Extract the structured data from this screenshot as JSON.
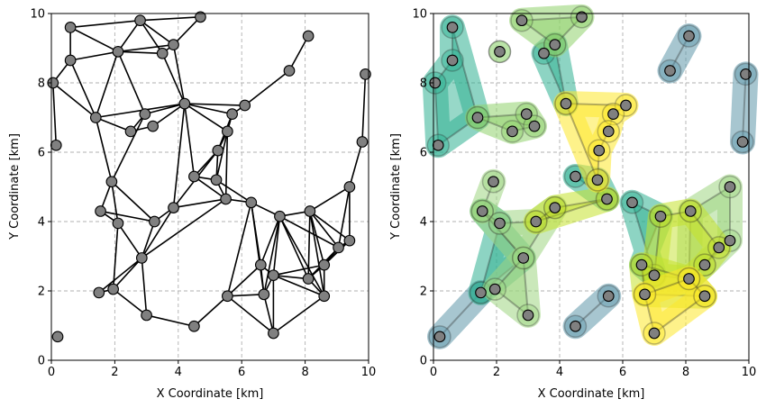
{
  "chart_data": [
    {
      "type": "network",
      "title": "",
      "xlabel": "X Coordinate [km]",
      "ylabel": "Y Coordinate [km]",
      "xlim": [
        0,
        10
      ],
      "ylim": [
        0,
        10
      ],
      "x_ticks": [
        "0",
        "2",
        "4",
        "6",
        "8",
        "10"
      ],
      "y_ticks": [
        "0",
        "2",
        "4",
        "6",
        "8",
        "10"
      ],
      "grid": true,
      "node_color": "#808080",
      "edge_color": "#000000",
      "nodes": [
        [
          0.6,
          9.6
        ],
        [
          2.8,
          9.8
        ],
        [
          4.7,
          9.9
        ],
        [
          2.1,
          8.9
        ],
        [
          0.6,
          8.65
        ],
        [
          3.5,
          8.85
        ],
        [
          3.85,
          9.1
        ],
        [
          0.05,
          8.0
        ],
        [
          8.1,
          9.35
        ],
        [
          7.5,
          8.35
        ],
        [
          9.9,
          8.25
        ],
        [
          1.4,
          7.0
        ],
        [
          2.95,
          7.1
        ],
        [
          3.2,
          6.75
        ],
        [
          2.5,
          6.6
        ],
        [
          4.2,
          7.4
        ],
        [
          5.7,
          7.1
        ],
        [
          6.1,
          7.35
        ],
        [
          5.55,
          6.6
        ],
        [
          0.15,
          6.2
        ],
        [
          5.25,
          6.05
        ],
        [
          9.8,
          6.3
        ],
        [
          1.9,
          5.15
        ],
        [
          4.5,
          5.3
        ],
        [
          5.2,
          5.2
        ],
        [
          9.4,
          5.0
        ],
        [
          5.5,
          4.65
        ],
        [
          6.3,
          4.55
        ],
        [
          1.55,
          4.3
        ],
        [
          3.85,
          4.4
        ],
        [
          2.1,
          3.95
        ],
        [
          3.25,
          4.0
        ],
        [
          7.2,
          4.15
        ],
        [
          8.15,
          4.3
        ],
        [
          9.4,
          3.45
        ],
        [
          9.05,
          3.25
        ],
        [
          2.85,
          2.95
        ],
        [
          6.6,
          2.75
        ],
        [
          8.6,
          2.75
        ],
        [
          7.0,
          2.45
        ],
        [
          8.1,
          2.35
        ],
        [
          1.5,
          1.95
        ],
        [
          1.95,
          2.05
        ],
        [
          5.55,
          1.85
        ],
        [
          6.7,
          1.9
        ],
        [
          8.6,
          1.85
        ],
        [
          3.0,
          1.3
        ],
        [
          4.5,
          0.98
        ],
        [
          7.0,
          0.78
        ],
        [
          0.2,
          0.68
        ]
      ],
      "edges": [
        [
          0,
          1
        ],
        [
          0,
          4
        ],
        [
          0,
          3
        ],
        [
          1,
          2
        ],
        [
          1,
          6
        ],
        [
          1,
          3
        ],
        [
          1,
          5
        ],
        [
          2,
          6
        ],
        [
          3,
          4
        ],
        [
          3,
          6
        ],
        [
          3,
          5
        ],
        [
          5,
          6
        ],
        [
          6,
          15
        ],
        [
          5,
          15
        ],
        [
          4,
          7
        ],
        [
          7,
          19
        ],
        [
          7,
          11
        ],
        [
          4,
          11
        ],
        [
          3,
          11
        ],
        [
          3,
          12
        ],
        [
          11,
          15
        ],
        [
          11,
          14
        ],
        [
          12,
          14
        ],
        [
          12,
          15
        ],
        [
          14,
          13
        ],
        [
          15,
          13
        ],
        [
          11,
          22
        ],
        [
          15,
          16
        ],
        [
          15,
          17
        ],
        [
          15,
          23
        ],
        [
          15,
          18
        ],
        [
          16,
          17
        ],
        [
          16,
          18
        ],
        [
          16,
          20
        ],
        [
          18,
          20
        ],
        [
          18,
          24
        ],
        [
          18,
          26
        ],
        [
          20,
          24
        ],
        [
          17,
          9
        ],
        [
          9,
          8
        ],
        [
          12,
          22
        ],
        [
          15,
          29
        ],
        [
          20,
          23
        ],
        [
          20,
          29
        ],
        [
          23,
          24
        ],
        [
          23,
          26
        ],
        [
          24,
          26
        ],
        [
          24,
          27
        ],
        [
          26,
          27
        ],
        [
          26,
          29
        ],
        [
          22,
          28
        ],
        [
          22,
          30
        ],
        [
          22,
          31
        ],
        [
          28,
          31
        ],
        [
          28,
          30
        ],
        [
          30,
          36
        ],
        [
          29,
          31
        ],
        [
          29,
          36
        ],
        [
          31,
          36
        ],
        [
          30,
          42
        ],
        [
          36,
          42
        ],
        [
          36,
          41
        ],
        [
          36,
          46
        ],
        [
          41,
          42
        ],
        [
          42,
          46
        ],
        [
          26,
          36
        ],
        [
          27,
          37
        ],
        [
          27,
          32
        ],
        [
          27,
          44
        ],
        [
          32,
          33
        ],
        [
          32,
          37
        ],
        [
          32,
          39
        ],
        [
          32,
          40
        ],
        [
          32,
          44
        ],
        [
          32,
          35
        ],
        [
          32,
          45
        ],
        [
          33,
          25
        ],
        [
          33,
          34
        ],
        [
          33,
          35
        ],
        [
          33,
          38
        ],
        [
          33,
          40
        ],
        [
          33,
          45
        ],
        [
          25,
          21
        ],
        [
          21,
          10
        ],
        [
          25,
          34
        ],
        [
          25,
          35
        ],
        [
          34,
          35
        ],
        [
          34,
          38
        ],
        [
          35,
          38
        ],
        [
          35,
          40
        ],
        [
          38,
          39
        ],
        [
          38,
          40
        ],
        [
          39,
          40
        ],
        [
          39,
          45
        ],
        [
          40,
          45
        ],
        [
          37,
          39
        ],
        [
          37,
          44
        ],
        [
          37,
          43
        ],
        [
          43,
          44
        ],
        [
          43,
          48
        ],
        [
          44,
          48
        ],
        [
          39,
          48
        ],
        [
          45,
          48
        ],
        [
          44,
          39
        ],
        [
          43,
          27
        ],
        [
          46,
          47
        ],
        [
          47,
          43
        ],
        [
          38,
          45
        ],
        [
          34,
          40
        ]
      ]
    },
    {
      "type": "clusters",
      "title": "",
      "xlabel": "X Coordinate [km]",
      "ylabel": "Y Coordinate [km]",
      "xlim": [
        0,
        10
      ],
      "ylim": [
        0,
        10
      ],
      "x_ticks": [
        "0",
        "2",
        "4",
        "6",
        "8",
        "10"
      ],
      "y_ticks": [
        "0",
        "2",
        "4",
        "6",
        "8",
        "10"
      ],
      "grid": true,
      "palette": {
        "steel-blue": "#5f97aa",
        "teal": "#2fb192",
        "green": "#8fd16b",
        "light-green": "#9ed682",
        "lime": "#c4e12c",
        "yellow": "#fde82a"
      },
      "groups": [
        {
          "color": "#5f97aa",
          "members": [
            9,
            8
          ]
        },
        {
          "color": "#5f97aa",
          "members": [
            10,
            21
          ]
        },
        {
          "color": "#5f97aa",
          "members": [
            47,
            43
          ]
        },
        {
          "color": "#5f97aa",
          "members": [
            49,
            41
          ]
        },
        {
          "color": "#2fb192",
          "members": [
            0,
            4,
            7,
            19,
            11
          ]
        },
        {
          "color": "#2fb192",
          "members": [
            5,
            6,
            15
          ]
        },
        {
          "color": "#2fb192",
          "members": [
            23,
            26,
            24
          ]
        },
        {
          "color": "#2fb192",
          "members": [
            41,
            30,
            28,
            36
          ]
        },
        {
          "color": "#2fb192",
          "members": [
            27,
            32,
            37,
            39
          ]
        },
        {
          "color": "#8fd16b",
          "members": [
            1,
            2,
            6
          ]
        },
        {
          "color": "#8fd16b",
          "members": [
            11,
            12,
            13,
            14
          ]
        },
        {
          "color": "#9ed682",
          "members": [
            3,
            3
          ]
        },
        {
          "color": "#9ed682",
          "members": [
            22,
            28
          ]
        },
        {
          "color": "#9ed682",
          "members": [
            28,
            30,
            31,
            29,
            36
          ]
        },
        {
          "color": "#9ed682",
          "members": [
            33,
            25,
            34,
            38,
            40
          ]
        },
        {
          "color": "#9ed682",
          "members": [
            42,
            36,
            46
          ]
        },
        {
          "color": "#c4e12c",
          "members": [
            31,
            29,
            26
          ]
        },
        {
          "color": "#c4e12c",
          "members": [
            32,
            33,
            35,
            38,
            40,
            39
          ]
        },
        {
          "color": "#c4e12c",
          "members": [
            37,
            44,
            45,
            40
          ]
        },
        {
          "color": "#fde82a",
          "members": [
            15,
            17,
            16,
            18,
            20,
            24
          ]
        },
        {
          "color": "#fde82a",
          "members": [
            44,
            48,
            45,
            40
          ]
        }
      ]
    }
  ]
}
